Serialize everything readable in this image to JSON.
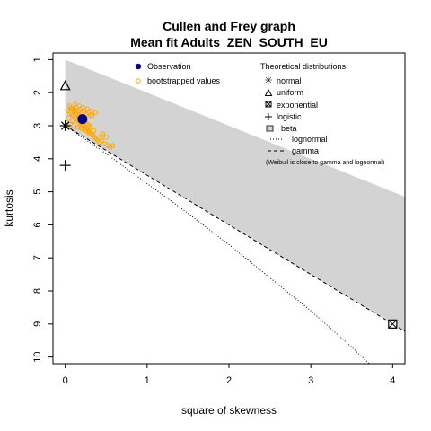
{
  "chart_data": {
    "type": "scatter",
    "title": "Cullen and Frey graph",
    "subtitle": "Mean fit  Adults_ZEN_SOUTH_EU",
    "xlabel": "square of skewness",
    "ylabel": "kurtosis",
    "xlim": [
      -0.15,
      4.15
    ],
    "ylim": [
      10.2,
      0.8
    ],
    "x_ticks": [
      "0",
      "1",
      "2",
      "3",
      "4"
    ],
    "y_ticks": [
      "1",
      "2",
      "3",
      "4",
      "5",
      "6",
      "7",
      "8",
      "9",
      "10"
    ],
    "observation": {
      "x": 0.21,
      "y": 2.8
    },
    "bootstrap": {
      "x": [
        0.05,
        0.07,
        0.09,
        0.11,
        0.13,
        0.15,
        0.17,
        0.19,
        0.21,
        0.23,
        0.25,
        0.27,
        0.29,
        0.31,
        0.06,
        0.08,
        0.1,
        0.12,
        0.14,
        0.16,
        0.18,
        0.2,
        0.22,
        0.24,
        0.26,
        0.28,
        0.3,
        0.32,
        0.34,
        0.04,
        0.09,
        0.14,
        0.19,
        0.24,
        0.29,
        0.34,
        0.36,
        0.38,
        0.4,
        0.42,
        0.45,
        0.48,
        0.52,
        0.55,
        0.11,
        0.16,
        0.21,
        0.26,
        0.31,
        0.03,
        0.08,
        0.13,
        0.18,
        0.23,
        0.28,
        0.33,
        0.1,
        0.15,
        0.2,
        0.25,
        0.3,
        0.35,
        0.12,
        0.17,
        0.22,
        0.27,
        0.32,
        0.37,
        0.44,
        0.5,
        0.06,
        0.02,
        0.01,
        0.58,
        0.46
      ],
      "y": [
        2.4,
        2.45,
        2.5,
        2.55,
        2.6,
        2.65,
        2.7,
        2.75,
        2.8,
        2.85,
        2.9,
        2.95,
        3.0,
        3.05,
        2.6,
        2.65,
        2.7,
        2.75,
        2.8,
        2.85,
        2.9,
        2.95,
        3.0,
        3.05,
        3.1,
        3.15,
        3.2,
        3.25,
        3.3,
        2.75,
        2.85,
        2.95,
        3.05,
        3.15,
        3.25,
        3.3,
        3.35,
        3.4,
        3.45,
        3.5,
        3.45,
        3.55,
        3.6,
        3.65,
        2.5,
        2.55,
        2.6,
        2.65,
        2.7,
        2.55,
        2.5,
        2.45,
        2.5,
        2.55,
        2.6,
        2.7,
        3.0,
        3.05,
        3.1,
        3.15,
        3.2,
        3.15,
        2.35,
        2.4,
        2.45,
        2.5,
        2.55,
        2.6,
        3.3,
        3.35,
        2.95,
        2.9,
        3.0,
        3.6,
        3.25
      ]
    },
    "theoretical": {
      "normal": {
        "x": 0,
        "y": 3
      },
      "uniform": {
        "x": 0,
        "y": 1.8
      },
      "exponential": {
        "x": 4,
        "y": 9
      },
      "logistic": {
        "x": 0,
        "y": 4.2
      }
    },
    "gamma_line": {
      "x": [
        0,
        4.15
      ],
      "y": [
        3,
        9.225
      ]
    },
    "lognormal_line": {
      "x": [
        0,
        0.5,
        1,
        1.5,
        2,
        2.5,
        3,
        3.5,
        3.8
      ],
      "y": [
        3,
        3.85,
        4.75,
        5.65,
        6.6,
        7.6,
        8.6,
        9.7,
        10.4
      ]
    },
    "beta_region": {
      "x": [
        0,
        4.15,
        4.15,
        0
      ],
      "y": [
        1,
        5.15,
        9.225,
        3
      ]
    },
    "legend": {
      "placement": "top",
      "observation": "Observation",
      "bootstrapped": "bootstrapped values",
      "theoretical_title": "Theoretical distributions",
      "normal": "normal",
      "uniform": "uniform",
      "exponential": "exponential",
      "logistic": "logistic",
      "beta": "beta",
      "lognormal": "lognormal",
      "gamma": "gamma",
      "note": "(Weibull is close to gamma and lognormal)"
    },
    "colors": {
      "beta_fill": "#d3d3d3",
      "observation": "#00008b",
      "bootstrap": "#ffa500",
      "axis": "#000000"
    }
  }
}
